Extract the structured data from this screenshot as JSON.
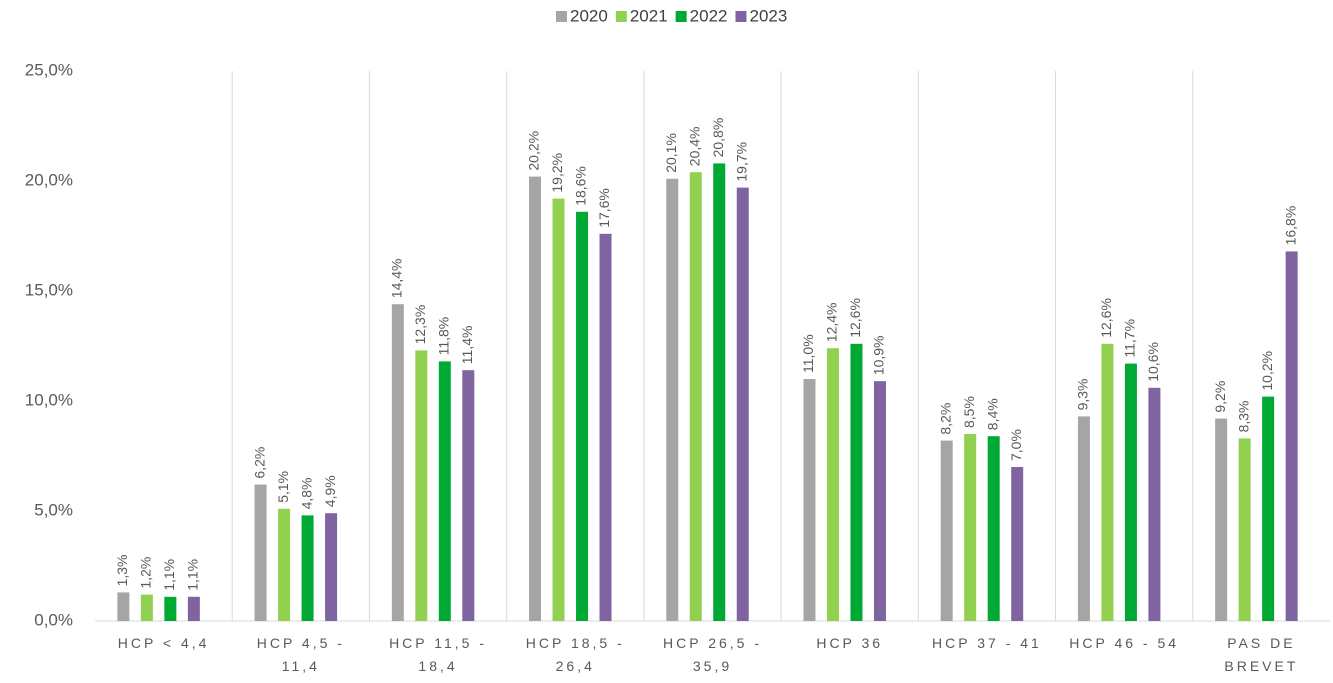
{
  "chart_data": {
    "type": "bar",
    "categories": [
      "HCP < 4,4",
      "HCP 4,5 - 11,4",
      "HCP 11,5 - 18,4",
      "HCP 18,5 - 26,4",
      "HCP 26,5 - 35,9",
      "HCP 36",
      "HCP 37 - 41",
      "HCP 46 - 54",
      "PAS DE BREVET"
    ],
    "series": [
      {
        "name": "2020",
        "color": "#a5a5a5",
        "values": [
          1.3,
          6.2,
          14.4,
          20.2,
          20.1,
          11.0,
          8.2,
          9.3,
          9.2
        ],
        "value_labels": [
          "1,3%",
          "6,2%",
          "14,4%",
          "20,2%",
          "20,1%",
          "11,0%",
          "8,2%",
          "9,3%",
          "9,2%"
        ]
      },
      {
        "name": "2021",
        "color": "#92d050",
        "values": [
          1.2,
          5.1,
          12.3,
          19.2,
          20.4,
          12.4,
          8.5,
          12.6,
          8.3
        ],
        "value_labels": [
          "1,2%",
          "5,1%",
          "12,3%",
          "19,2%",
          "20,4%",
          "12,4%",
          "8,5%",
          "12,6%",
          "8,3%"
        ]
      },
      {
        "name": "2022",
        "color": "#00a933",
        "values": [
          1.1,
          4.8,
          11.8,
          18.6,
          20.8,
          12.6,
          8.4,
          11.7,
          10.2
        ],
        "value_labels": [
          "1,1%",
          "4,8%",
          "11,8%",
          "18,6%",
          "20,8%",
          "12,6%",
          "8,4%",
          "11,7%",
          "10,2%"
        ]
      },
      {
        "name": "2023",
        "color": "#8064a2",
        "values": [
          1.1,
          4.9,
          11.4,
          17.6,
          19.7,
          10.9,
          7.0,
          10.6,
          16.8
        ],
        "value_labels": [
          "1,1%",
          "4,9%",
          "11,4%",
          "17,6%",
          "19,7%",
          "10,9%",
          "7,0%",
          "10,6%",
          "16,8%"
        ]
      }
    ],
    "ylim": [
      0,
      25
    ],
    "yticks": [
      {
        "value": 0,
        "label": "0,0%"
      },
      {
        "value": 5,
        "label": "5,0%"
      },
      {
        "value": 10,
        "label": "10,0%"
      },
      {
        "value": 15,
        "label": "15,0%"
      },
      {
        "value": 20,
        "label": "20,0%"
      },
      {
        "value": 25,
        "label": "25,0%"
      }
    ],
    "legend": "top"
  }
}
